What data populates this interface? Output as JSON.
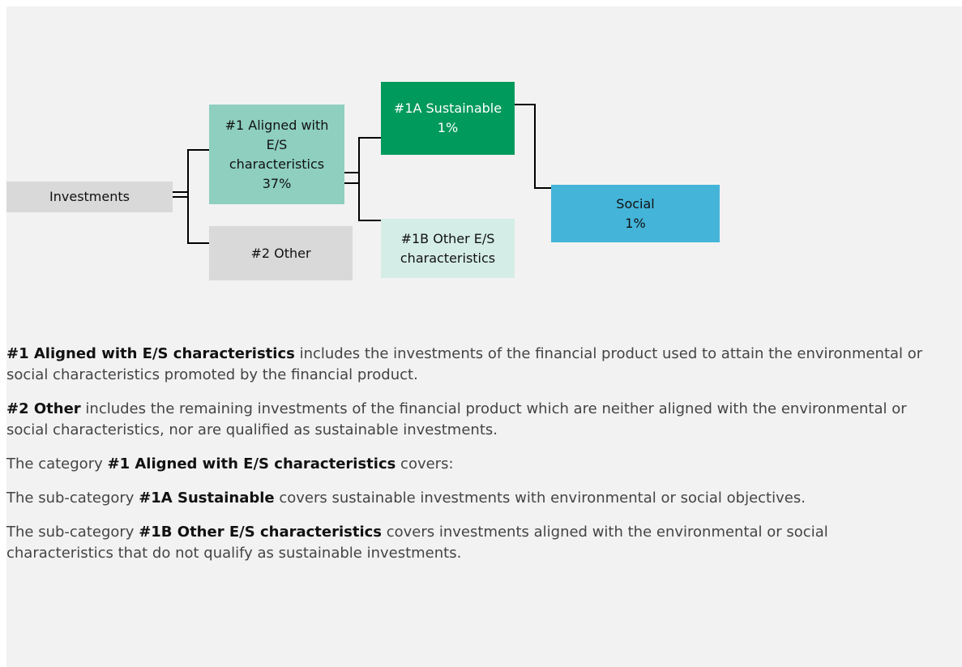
{
  "nodes": [
    {
      "lines": [
        "Investments"
      ]
    },
    {
      "lines": [
        "#1 Aligned with",
        "E/S",
        "characteristics",
        "37%"
      ]
    },
    {
      "lines": [
        "#2 Other"
      ]
    },
    {
      "lines": [
        "#1A Sustainable",
        "1%"
      ]
    },
    {
      "lines": [
        "#1B Other E/S",
        "characteristics"
      ]
    },
    {
      "lines": [
        "Social",
        "1%"
      ]
    }
  ],
  "paragraphs": [
    {
      "segments": [
        {
          "text": "#1 Aligned with E/S characteristics",
          "bold": true
        },
        {
          "text": " includes the investments of the financial product used to attain the environmental or social characteristics promoted by the financial product.",
          "bold": false
        }
      ]
    },
    {
      "segments": [
        {
          "text": "#2 Other",
          "bold": true
        },
        {
          "text": " includes the remaining investments of the financial product which are neither aligned with the environmental or social characteristics, nor are qualified as sustainable investments.",
          "bold": false
        }
      ]
    },
    {
      "segments": [
        {
          "text": "The category ",
          "bold": false
        },
        {
          "text": "#1 Aligned with E/S characteristics",
          "bold": true
        },
        {
          "text": " covers:",
          "bold": false
        }
      ]
    },
    {
      "segments": [
        {
          "text": "The sub-category ",
          "bold": false
        },
        {
          "text": "#1A Sustainable",
          "bold": true
        },
        {
          "text": " covers sustainable investments with environmental or social objectives.",
          "bold": false
        }
      ]
    },
    {
      "segments": [
        {
          "text": "The sub-category ",
          "bold": false
        },
        {
          "text": "#1B Other E/S characteristics",
          "bold": true
        },
        {
          "text": " covers investments aligned with the environmental or social characteristics that do not qualify as sustainable investments.",
          "bold": false
        }
      ]
    }
  ]
}
